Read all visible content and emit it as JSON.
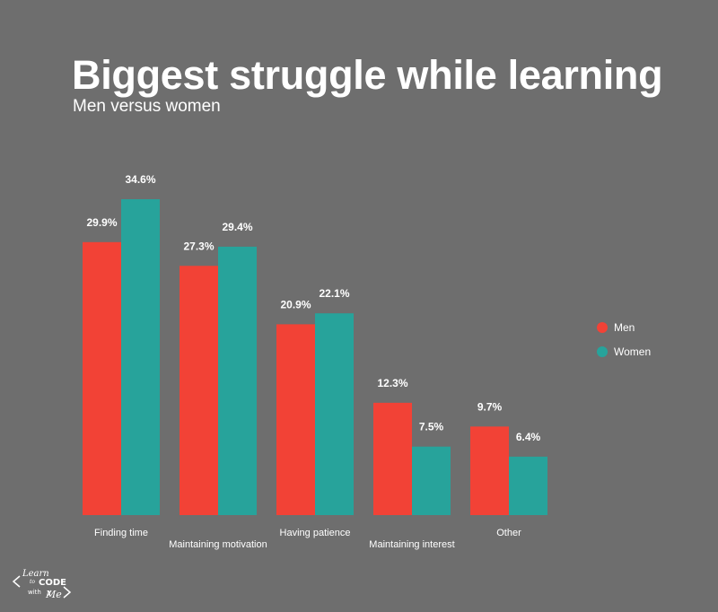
{
  "chart_data": {
    "type": "bar",
    "title": "Biggest struggle while learning",
    "subtitle": "Men versus women",
    "categories": [
      "Finding time",
      "Maintaining motivation",
      "Having patience",
      "Maintaining interest",
      "Other"
    ],
    "series": [
      {
        "name": "Men",
        "color": "#f24236",
        "values": [
          29.9,
          27.3,
          20.9,
          12.3,
          9.7
        ],
        "labels": [
          "29.9%",
          "27.3%",
          "20.9%",
          "12.3%",
          "9.7%"
        ]
      },
      {
        "name": "Women",
        "color": "#27a39b",
        "values": [
          34.6,
          29.4,
          22.1,
          7.5,
          6.4
        ],
        "labels": [
          "34.6%",
          "29.4%",
          "22.1%",
          "7.5%",
          "6.4%"
        ]
      }
    ],
    "ylim": [
      0,
      34.6
    ],
    "legend_position": "right",
    "grid": false
  },
  "logo": {
    "line1": "Learn",
    "line2": "to",
    "line3": "CODE",
    "line4": "with",
    "line5": "Me"
  }
}
